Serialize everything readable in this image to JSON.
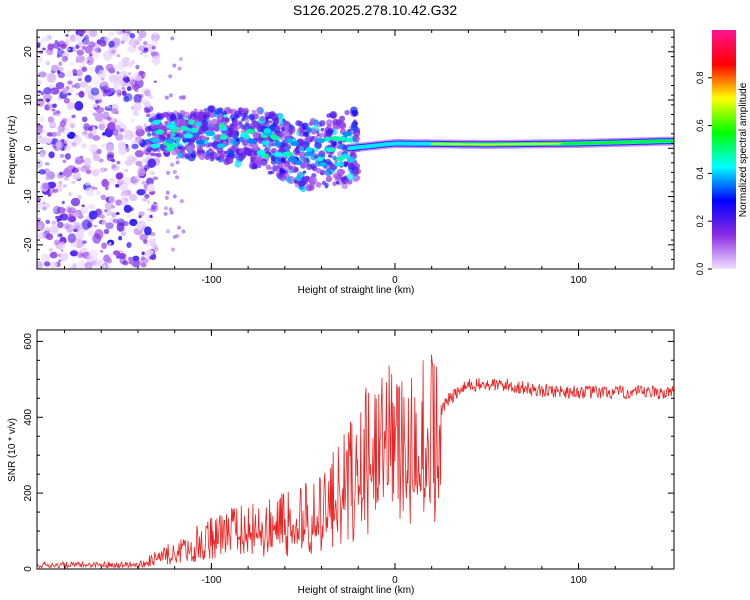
{
  "figure": {
    "title": "S126.2025.278.10.42.G32"
  },
  "chart_data": [
    {
      "type": "heatmap",
      "title": "S126.2025.278.10.42.G32",
      "xlabel": "Height of straight line (km)",
      "ylabel": "Frequency (Hz)",
      "xlim": [
        -195,
        152
      ],
      "ylim": [
        -25,
        24.5
      ],
      "xticks": [
        -100,
        0,
        100
      ],
      "xtick_labels": [
        "-100",
        "0",
        "100"
      ],
      "yticks": [
        -20,
        -10,
        0,
        10,
        20
      ],
      "ytick_labels": [
        "-20",
        "-10",
        "0",
        "10",
        "20"
      ],
      "colorbar": {
        "label": "Normalized spectral amplitude",
        "range": [
          0,
          1
        ],
        "ticks": [
          0.0,
          0.2,
          0.4,
          0.6,
          0.8
        ],
        "tick_labels": [
          "0.0",
          "0.2",
          "0.4",
          "0.6",
          "0.8"
        ],
        "colors": [
          "#f0e0ff",
          "#8a2be2",
          "#0000ff",
          "#00ffff",
          "#00ff00",
          "#ffff00",
          "#ff0000",
          "#ff1493"
        ]
      },
      "features": {
        "noise_region_x": [
          -195,
          -130
        ],
        "band_center_hz": [
          {
            "x": -135,
            "y": 2.5
          },
          {
            "x": -100,
            "y": 3.0
          },
          {
            "x": -75,
            "y": 2.0
          },
          {
            "x": -50,
            "y": -1.5
          },
          {
            "x": -25,
            "y": 0.0
          },
          {
            "x": 0,
            "y": 1.0
          },
          {
            "x": 50,
            "y": 0.8
          },
          {
            "x": 100,
            "y": 1.0
          },
          {
            "x": 150,
            "y": 1.5
          }
        ]
      }
    },
    {
      "type": "line",
      "xlabel": "Height of straight line (km)",
      "ylabel": "SNR (10 * v/v)",
      "xlim": [
        -195,
        152
      ],
      "ylim": [
        0,
        630
      ],
      "xticks": [
        -100,
        0,
        100
      ],
      "xtick_labels": [
        "-100",
        "0",
        "100"
      ],
      "yticks": [
        0,
        200,
        400,
        600
      ],
      "ytick_labels": [
        "0",
        "200",
        "400",
        "600"
      ],
      "series": [
        {
          "name": "SNR",
          "color": "#ee2222",
          "envelope": [
            {
              "x": -195,
              "y": 10
            },
            {
              "x": -140,
              "y": 12
            },
            {
              "x": -130,
              "y": 30
            },
            {
              "x": -110,
              "y": 70
            },
            {
              "x": -90,
              "y": 110
            },
            {
              "x": -60,
              "y": 130
            },
            {
              "x": -40,
              "y": 170
            },
            {
              "x": -25,
              "y": 250
            },
            {
              "x": -15,
              "y": 330
            },
            {
              "x": -8,
              "y": 380
            },
            {
              "x": 0,
              "y": 340
            },
            {
              "x": 10,
              "y": 330
            },
            {
              "x": 20,
              "y": 390
            },
            {
              "x": 30,
              "y": 450
            },
            {
              "x": 40,
              "y": 485
            },
            {
              "x": 60,
              "y": 485
            },
            {
              "x": 80,
              "y": 470
            },
            {
              "x": 110,
              "y": 465
            },
            {
              "x": 152,
              "y": 465
            }
          ]
        }
      ]
    }
  ]
}
